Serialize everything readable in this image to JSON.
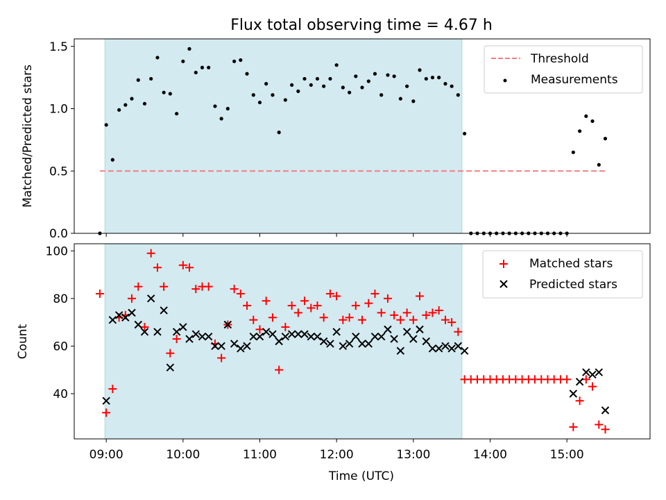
{
  "chart_data": [
    {
      "type": "scatter",
      "title": "Flux total observing time = 4.67 h",
      "xlabel": "",
      "ylabel": "Matched/Predicted stars",
      "xlim": [
        8.583,
        16.083
      ],
      "ylim": [
        0,
        1.56
      ],
      "yticks": [
        0.0,
        0.5,
        1.0,
        1.5
      ],
      "ytick_labels": [
        "0.0",
        "0.5",
        "1.0",
        "1.5"
      ],
      "shaded_span": {
        "start": 8.983,
        "end": 13.633,
        "color": "#d3eaf0"
      },
      "legend_position": "top-right",
      "series": [
        {
          "name": "Threshold",
          "kind": "dashed-line",
          "color": "#f08080",
          "x": [
            8.917,
            15.5
          ],
          "y": [
            0.5,
            0.5
          ]
        },
        {
          "name": "Measurements",
          "kind": "dots",
          "color": "#000000",
          "x": [
            8.917,
            9.0,
            9.083,
            9.167,
            9.25,
            9.333,
            9.417,
            9.5,
            9.583,
            9.667,
            9.75,
            9.833,
            9.917,
            10.0,
            10.083,
            10.167,
            10.25,
            10.333,
            10.417,
            10.5,
            10.583,
            10.667,
            10.75,
            10.833,
            10.917,
            11.0,
            11.083,
            11.167,
            11.25,
            11.333,
            11.417,
            11.5,
            11.583,
            11.667,
            11.75,
            11.833,
            11.917,
            12.0,
            12.083,
            12.167,
            12.25,
            12.333,
            12.417,
            12.5,
            12.583,
            12.667,
            12.75,
            12.833,
            12.917,
            13.0,
            13.083,
            13.167,
            13.25,
            13.333,
            13.417,
            13.5,
            13.583,
            13.667,
            13.75,
            13.833,
            13.917,
            14.0,
            14.083,
            14.167,
            14.25,
            14.333,
            14.417,
            14.5,
            14.583,
            14.667,
            14.75,
            14.833,
            14.917,
            15.0,
            15.083,
            15.167,
            15.25,
            15.333,
            15.417,
            15.5
          ],
          "y": [
            0.0,
            0.87,
            0.59,
            0.99,
            1.03,
            1.08,
            1.23,
            1.04,
            1.24,
            1.41,
            1.13,
            1.12,
            0.96,
            1.38,
            1.48,
            1.29,
            1.33,
            1.33,
            1.02,
            0.92,
            1.0,
            1.38,
            1.39,
            1.28,
            1.11,
            1.05,
            1.2,
            1.11,
            0.81,
            1.07,
            1.19,
            1.14,
            1.24,
            1.19,
            1.24,
            1.18,
            1.24,
            1.35,
            1.17,
            1.13,
            1.26,
            1.17,
            1.22,
            1.28,
            1.11,
            1.27,
            1.26,
            1.08,
            1.18,
            1.06,
            1.31,
            1.24,
            1.25,
            1.25,
            1.2,
            1.18,
            1.11,
            0.8,
            0.0,
            0.0,
            0.0,
            0.0,
            0.0,
            0.0,
            0.0,
            0.0,
            0.0,
            0.0,
            0.0,
            0.0,
            0.0,
            0.0,
            0.0,
            0.0,
            0.65,
            0.82,
            0.94,
            0.9,
            0.55,
            0.76
          ]
        }
      ]
    },
    {
      "type": "scatter",
      "title": "",
      "xlabel": "Time (UTC)",
      "ylabel": "Count",
      "xlim": [
        8.583,
        16.083
      ],
      "ylim": [
        21,
        103
      ],
      "xticks": [
        9,
        10,
        11,
        12,
        13,
        14,
        15
      ],
      "xtick_labels": [
        "09:00",
        "10:00",
        "11:00",
        "12:00",
        "13:00",
        "14:00",
        "15:00"
      ],
      "yticks": [
        40,
        60,
        80,
        100
      ],
      "ytick_labels": [
        "40",
        "60",
        "80",
        "100"
      ],
      "shaded_span": {
        "start": 8.983,
        "end": 13.633,
        "color": "#d3eaf0"
      },
      "legend_position": "top-right",
      "series": [
        {
          "name": "Matched stars",
          "marker": "plus",
          "color": "#ff0000",
          "x": [
            8.917,
            9.0,
            9.083,
            9.167,
            9.25,
            9.333,
            9.417,
            9.5,
            9.583,
            9.667,
            9.75,
            9.833,
            9.917,
            10.0,
            10.083,
            10.167,
            10.25,
            10.333,
            10.417,
            10.5,
            10.583,
            10.667,
            10.75,
            10.833,
            10.917,
            11.0,
            11.083,
            11.167,
            11.25,
            11.333,
            11.417,
            11.5,
            11.583,
            11.667,
            11.75,
            11.833,
            11.917,
            12.0,
            12.083,
            12.167,
            12.25,
            12.333,
            12.417,
            12.5,
            12.583,
            12.667,
            12.75,
            12.833,
            12.917,
            13.0,
            13.083,
            13.167,
            13.25,
            13.333,
            13.417,
            13.5,
            13.583,
            13.667,
            13.75,
            13.833,
            13.917,
            14.0,
            14.083,
            14.167,
            14.25,
            14.333,
            14.417,
            14.5,
            14.583,
            14.667,
            14.75,
            14.833,
            14.917,
            15.0,
            15.083,
            15.167,
            15.25,
            15.333,
            15.417,
            15.5
          ],
          "y": [
            82,
            32,
            42,
            72,
            73,
            80,
            85,
            68,
            99,
            93,
            85,
            57,
            63,
            94,
            93,
            84,
            85,
            85,
            61,
            55,
            69,
            84,
            82,
            77,
            71,
            67,
            79,
            72,
            50,
            68,
            77,
            74,
            79,
            76,
            77,
            72,
            82,
            81,
            71,
            72,
            77,
            71,
            78,
            82,
            74,
            80,
            73,
            71,
            74,
            71,
            81,
            73,
            74,
            75,
            71,
            70,
            66,
            46,
            46,
            46,
            46,
            46,
            46,
            46,
            46,
            46,
            46,
            46,
            46,
            46,
            46,
            46,
            46,
            46,
            26,
            37,
            46,
            43,
            27,
            25
          ]
        },
        {
          "name": "Predicted stars",
          "marker": "x",
          "color": "#000000",
          "x": [
            9.0,
            9.083,
            9.167,
            9.25,
            9.333,
            9.417,
            9.5,
            9.583,
            9.667,
            9.75,
            9.833,
            9.917,
            10.0,
            10.083,
            10.167,
            10.25,
            10.333,
            10.417,
            10.5,
            10.583,
            10.667,
            10.75,
            10.833,
            10.917,
            11.0,
            11.083,
            11.167,
            11.25,
            11.333,
            11.417,
            11.5,
            11.583,
            11.667,
            11.75,
            11.833,
            11.917,
            12.0,
            12.083,
            12.167,
            12.25,
            12.333,
            12.417,
            12.5,
            12.583,
            12.667,
            12.75,
            12.833,
            12.917,
            13.0,
            13.083,
            13.167,
            13.25,
            13.333,
            13.417,
            13.5,
            13.583,
            13.667,
            15.083,
            15.167,
            15.25,
            15.333,
            15.417,
            15.5
          ],
          "y": [
            37,
            71,
            73,
            72,
            74,
            69,
            66,
            80,
            66,
            75,
            51,
            66,
            68,
            63,
            65,
            64,
            64,
            60,
            60,
            69,
            61,
            59,
            60,
            64,
            64,
            66,
            65,
            62,
            64,
            65,
            65,
            65,
            64,
            64,
            62,
            61,
            66,
            60,
            61,
            64,
            61,
            61,
            64,
            64,
            67,
            63,
            58,
            66,
            63,
            67,
            62,
            59,
            59,
            60,
            59,
            60,
            58,
            40,
            45,
            49,
            48,
            49,
            33
          ]
        }
      ]
    }
  ]
}
